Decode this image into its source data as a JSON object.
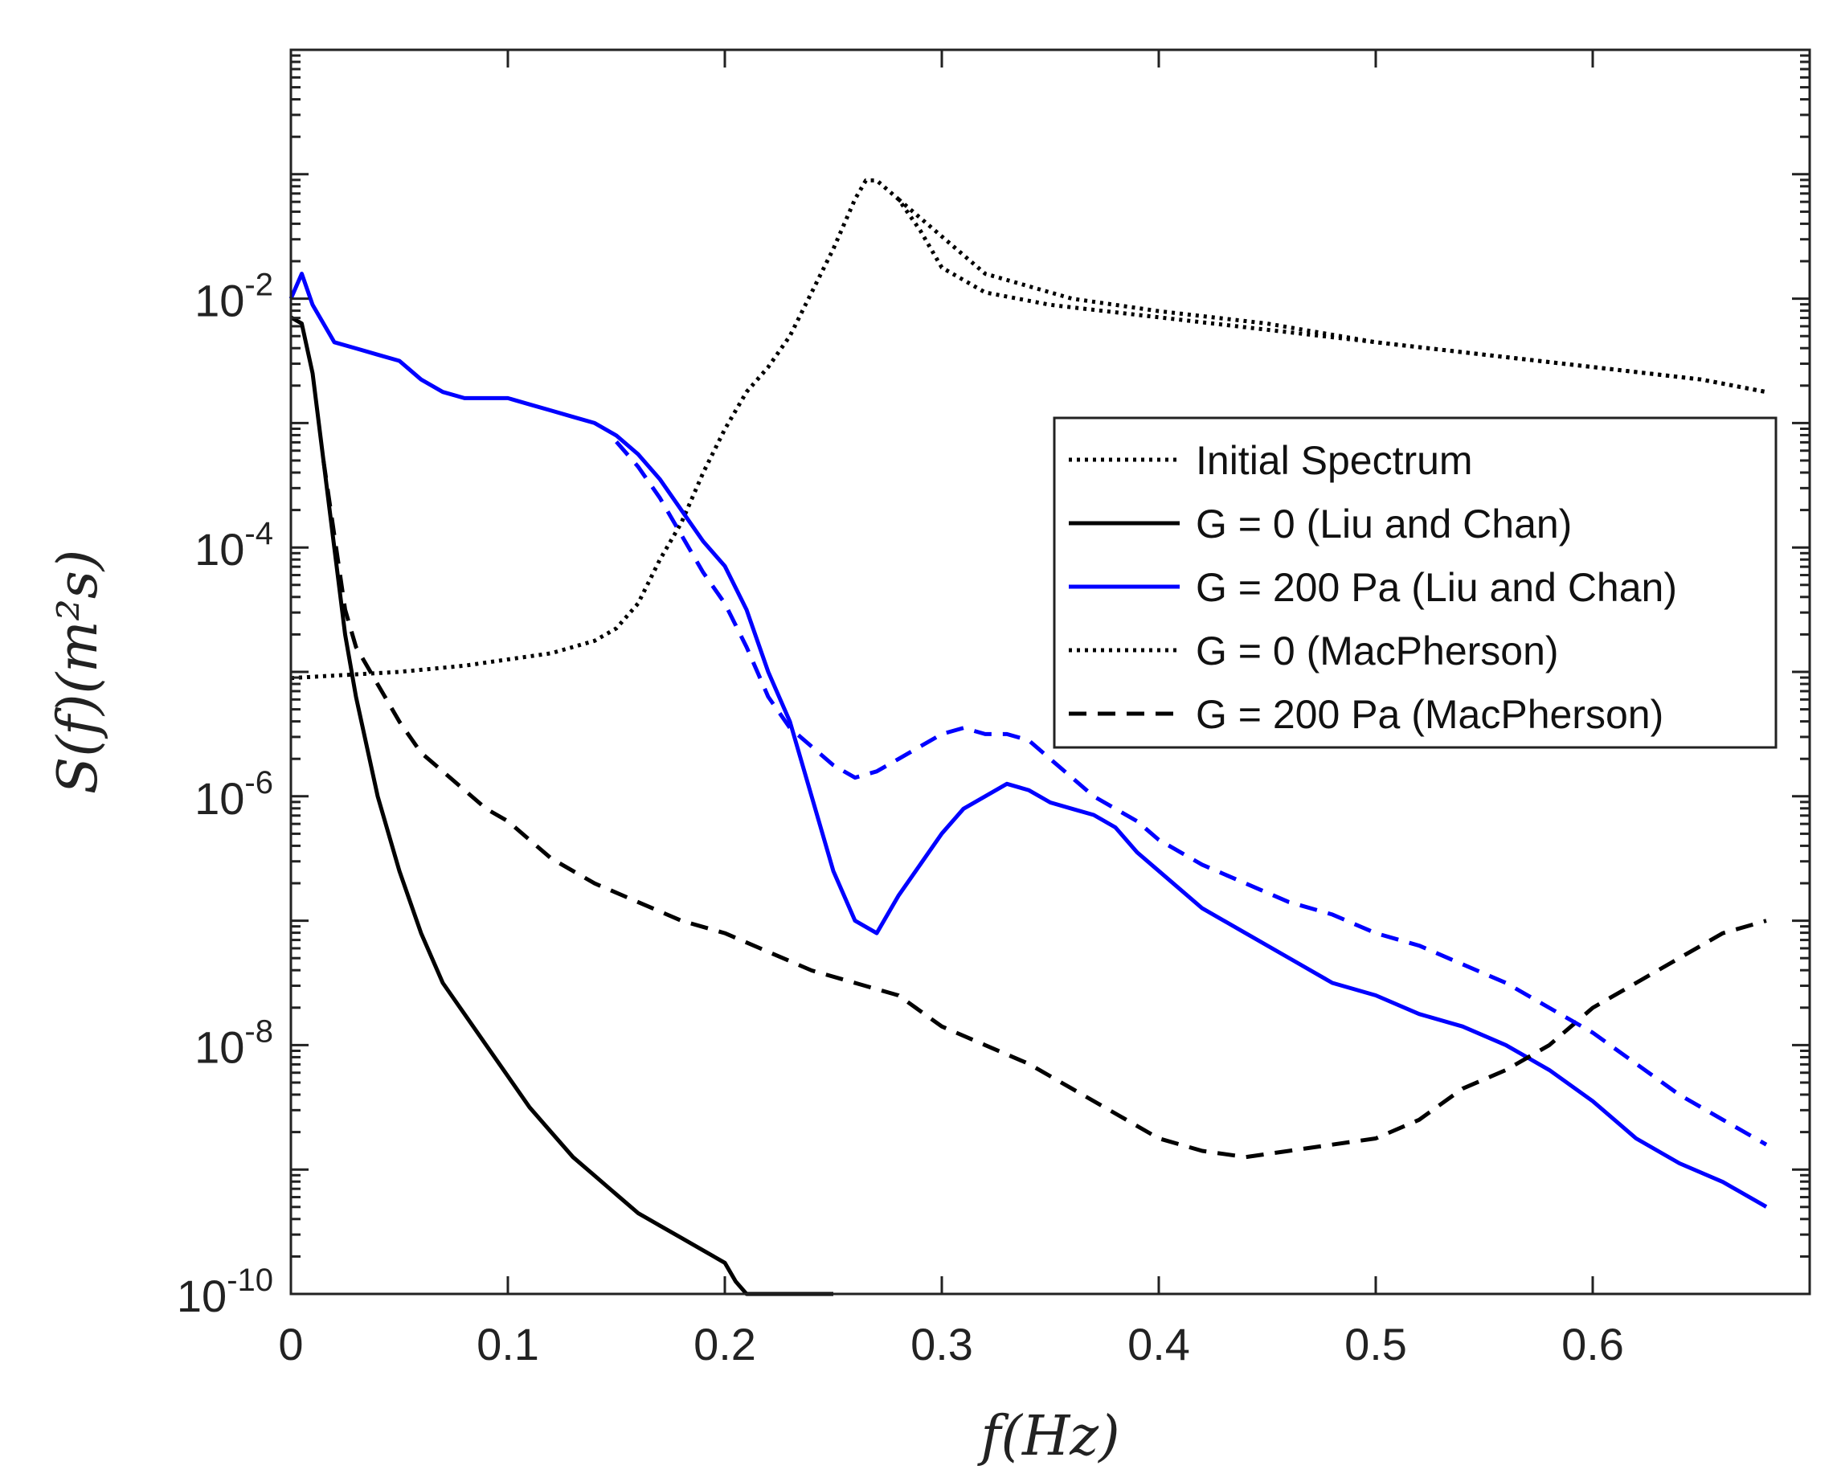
{
  "chart_data": {
    "type": "line",
    "title": "",
    "xlabel": "f(Hz)",
    "ylabel": "S(f)(m²s)",
    "x_ticks": [
      0,
      0.1,
      0.2,
      0.3,
      0.4,
      0.5,
      0.6
    ],
    "x_tick_labels": [
      "0",
      "0.1",
      "0.2",
      "0.3",
      "0.4",
      "0.5",
      "0.6"
    ],
    "y_ticks": [
      -10,
      -8,
      -6,
      -4,
      -2
    ],
    "y_tick_labels": [
      {
        "base": "10",
        "exp": "-10"
      },
      {
        "base": "10",
        "exp": "-8"
      },
      {
        "base": "10",
        "exp": "-6"
      },
      {
        "base": "10",
        "exp": "-4"
      },
      {
        "base": "10",
        "exp": "-2"
      }
    ],
    "xlim": [
      0,
      0.7
    ],
    "ylim_log10": [
      -10,
      0
    ],
    "y_scale": "log",
    "legend_position": "center-right",
    "series": [
      {
        "name": "Initial Spectrum",
        "color": "#000000",
        "style": "dotted",
        "x": [
          0,
          0.02,
          0.05,
          0.08,
          0.1,
          0.12,
          0.14,
          0.15,
          0.16,
          0.17,
          0.18,
          0.19,
          0.2,
          0.21,
          0.22,
          0.23,
          0.24,
          0.25,
          0.26,
          0.265,
          0.27,
          0.28,
          0.29,
          0.3,
          0.31,
          0.32,
          0.35,
          0.4,
          0.45,
          0.5,
          0.55,
          0.6,
          0.65,
          0.68
        ],
        "y": [
          -5.05,
          -5.03,
          -5.0,
          -4.95,
          -4.9,
          -4.85,
          -4.75,
          -4.65,
          -4.45,
          -4.1,
          -3.8,
          -3.4,
          -3.05,
          -2.75,
          -2.55,
          -2.3,
          -1.95,
          -1.6,
          -1.2,
          -1.05,
          -1.05,
          -1.2,
          -1.45,
          -1.75,
          -1.85,
          -1.95,
          -2.05,
          -2.15,
          -2.25,
          -2.35,
          -2.45,
          -2.55,
          -2.65,
          -2.75
        ]
      },
      {
        "name": "G = 0 (Liu and Chan)",
        "color": "#000000",
        "style": "solid",
        "x": [
          0,
          0.005,
          0.01,
          0.015,
          0.02,
          0.025,
          0.03,
          0.035,
          0.04,
          0.05,
          0.06,
          0.07,
          0.08,
          0.09,
          0.1,
          0.11,
          0.12,
          0.13,
          0.14,
          0.15,
          0.16,
          0.17,
          0.18,
          0.19,
          0.2,
          0.205,
          0.21,
          0.25
        ],
        "y": [
          -2.15,
          -2.2,
          -2.6,
          -3.3,
          -4.0,
          -4.7,
          -5.2,
          -5.6,
          -6.0,
          -6.6,
          -7.1,
          -7.5,
          -7.75,
          -8.0,
          -8.25,
          -8.5,
          -8.7,
          -8.9,
          -9.05,
          -9.2,
          -9.35,
          -9.45,
          -9.55,
          -9.65,
          -9.75,
          -9.9,
          -10.0,
          -10.0
        ]
      },
      {
        "name": "G = 200 Pa (Liu and Chan)",
        "color": "#0000ff",
        "style": "solid",
        "x": [
          0,
          0.005,
          0.01,
          0.02,
          0.03,
          0.04,
          0.05,
          0.06,
          0.07,
          0.08,
          0.09,
          0.1,
          0.11,
          0.12,
          0.13,
          0.14,
          0.15,
          0.16,
          0.17,
          0.18,
          0.19,
          0.2,
          0.21,
          0.22,
          0.23,
          0.24,
          0.25,
          0.26,
          0.27,
          0.28,
          0.29,
          0.3,
          0.31,
          0.32,
          0.33,
          0.34,
          0.35,
          0.36,
          0.37,
          0.38,
          0.39,
          0.4,
          0.42,
          0.44,
          0.46,
          0.48,
          0.5,
          0.52,
          0.54,
          0.56,
          0.58,
          0.6,
          0.62,
          0.64,
          0.66,
          0.68
        ],
        "y": [
          -2.0,
          -1.8,
          -2.05,
          -2.35,
          -2.4,
          -2.45,
          -2.5,
          -2.65,
          -2.75,
          -2.8,
          -2.8,
          -2.8,
          -2.85,
          -2.9,
          -2.95,
          -3.0,
          -3.1,
          -3.25,
          -3.45,
          -3.7,
          -3.95,
          -4.15,
          -4.5,
          -5.0,
          -5.4,
          -6.0,
          -6.6,
          -7.0,
          -7.1,
          -6.8,
          -6.55,
          -6.3,
          -6.1,
          -6.0,
          -5.9,
          -5.95,
          -6.05,
          -6.1,
          -6.15,
          -6.25,
          -6.45,
          -6.6,
          -6.9,
          -7.1,
          -7.3,
          -7.5,
          -7.6,
          -7.75,
          -7.85,
          -8.0,
          -8.2,
          -8.45,
          -8.75,
          -8.95,
          -9.1,
          -9.3
        ]
      },
      {
        "name": "G = 0 (MacPherson)",
        "color": "#000000",
        "style": "dotted",
        "x": [
          0.28,
          0.32,
          0.36,
          0.4,
          0.45,
          0.5,
          0.55,
          0.6,
          0.65,
          0.68
        ],
        "y": [
          -1.2,
          -1.8,
          -2.0,
          -2.1,
          -2.2,
          -2.35,
          -2.45,
          -2.55,
          -2.65,
          -2.75
        ]
      },
      {
        "name": "G = 200 Pa (MacPherson)",
        "color": "#000000",
        "style": "dashed",
        "x": [
          0.015,
          0.02,
          0.025,
          0.03,
          0.04,
          0.05,
          0.06,
          0.07,
          0.08,
          0.09,
          0.1,
          0.12,
          0.14,
          0.16,
          0.18,
          0.2,
          0.22,
          0.24,
          0.26,
          0.28,
          0.3,
          0.32,
          0.34,
          0.36,
          0.38,
          0.4,
          0.42,
          0.44,
          0.46,
          0.48,
          0.5,
          0.52,
          0.54,
          0.56,
          0.58,
          0.6,
          0.62,
          0.64,
          0.66,
          0.68
        ],
        "y": [
          -3.3,
          -3.9,
          -4.5,
          -4.8,
          -5.1,
          -5.4,
          -5.65,
          -5.8,
          -5.95,
          -6.1,
          -6.2,
          -6.5,
          -6.7,
          -6.85,
          -7.0,
          -7.1,
          -7.25,
          -7.4,
          -7.5,
          -7.6,
          -7.85,
          -8.0,
          -8.15,
          -8.35,
          -8.55,
          -8.75,
          -8.85,
          -8.9,
          -8.85,
          -8.8,
          -8.75,
          -8.6,
          -8.35,
          -8.2,
          -8.0,
          -7.7,
          -7.5,
          -7.3,
          -7.1,
          -7.0
        ]
      },
      {
        "name": "MacPherson spectrum (G = 200 Pa, high-frequency, blue dashed)",
        "color": "#0000ff",
        "style": "dashed",
        "in_legend": false,
        "x": [
          0.15,
          0.16,
          0.17,
          0.18,
          0.19,
          0.2,
          0.21,
          0.22,
          0.23,
          0.24,
          0.25,
          0.26,
          0.27,
          0.28,
          0.29,
          0.3,
          0.31,
          0.32,
          0.33,
          0.34,
          0.35,
          0.36,
          0.37,
          0.38,
          0.39,
          0.4,
          0.42,
          0.44,
          0.46,
          0.48,
          0.5,
          0.52,
          0.54,
          0.56,
          0.58,
          0.6,
          0.62,
          0.64,
          0.66,
          0.68
        ],
        "y": [
          -3.15,
          -3.35,
          -3.6,
          -3.9,
          -4.2,
          -4.45,
          -4.8,
          -5.2,
          -5.45,
          -5.6,
          -5.75,
          -5.85,
          -5.8,
          -5.7,
          -5.6,
          -5.5,
          -5.45,
          -5.5,
          -5.5,
          -5.55,
          -5.7,
          -5.85,
          -6.0,
          -6.1,
          -6.2,
          -6.35,
          -6.55,
          -6.7,
          -6.85,
          -6.95,
          -7.1,
          -7.2,
          -7.35,
          -7.5,
          -7.7,
          -7.9,
          -8.15,
          -8.4,
          -8.6,
          -8.8
        ]
      }
    ]
  }
}
